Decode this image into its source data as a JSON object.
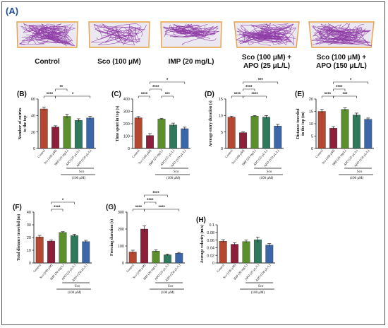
{
  "figure": {
    "panel_label": "(A)",
    "colors": {
      "track_path": "#8e3aa6",
      "tank_outline": "#e8a040",
      "tank_fill": "#ece8f2"
    },
    "groups": [
      {
        "label": "Control"
      },
      {
        "label": "Sco (100 μM)"
      },
      {
        "label": "IMP (20 mg/L)"
      },
      {
        "label": "Sco (100 μM) +",
        "label2": "APO (25 μL/L)"
      },
      {
        "label": "Sco (100 μM) +",
        "label2": "APO (150 μL/L)"
      }
    ]
  },
  "chart_data": [
    {
      "type": "bar",
      "panel": "(B)",
      "ylabel": "Number of entries\nto the top",
      "ylim": [
        0,
        60
      ],
      "yticks": [
        0,
        20,
        40,
        60
      ],
      "categories": [
        "Control",
        "Sco (100 μM)",
        "IMP (20 mg/L)",
        "APO (25 μL/L)",
        "APO (150 μL/L)"
      ],
      "values": [
        48,
        26,
        39,
        34,
        37
      ],
      "errors": [
        2,
        1.5,
        2.5,
        2,
        2
      ],
      "colors": [
        "#b5462f",
        "#8e1f3a",
        "#5b8f2e",
        "#2f7a5c",
        "#3b66a8"
      ],
      "group_label": "Sco",
      "group_sub": "(100 μM)",
      "sig": [
        {
          "from": 0,
          "to": 1,
          "level": 1,
          "label": "****"
        },
        {
          "from": 1,
          "to": 2,
          "level": 2,
          "label": "**"
        },
        {
          "from": 1,
          "to": 4,
          "level": 1,
          "label": "*"
        }
      ]
    },
    {
      "type": "bar",
      "panel": "(C)",
      "ylabel": "Time spent in top (s)",
      "ylim": [
        0,
        400
      ],
      "yticks": [
        0,
        100,
        200,
        300,
        400
      ],
      "categories": [
        "Control",
        "Sco (100 μM)",
        "IMP (20 mg/L)",
        "APO (25 μL/L)",
        "APO (150 μL/L)"
      ],
      "values": [
        248,
        105,
        238,
        190,
        160
      ],
      "errors": [
        10,
        15,
        6,
        15,
        12
      ],
      "colors": [
        "#b5462f",
        "#8e1f3a",
        "#5b8f2e",
        "#2f7a5c",
        "#3b66a8"
      ],
      "group_label": "Sco",
      "group_sub": "(100 μM)",
      "sig": [
        {
          "from": 0,
          "to": 1,
          "level": 1,
          "label": "****"
        },
        {
          "from": 1,
          "to": 2,
          "level": 2,
          "label": "****"
        },
        {
          "from": 2,
          "to": 3,
          "level": 1,
          "label": "***"
        },
        {
          "from": 1,
          "to": 4,
          "level": 3,
          "label": "*"
        }
      ]
    },
    {
      "type": "bar",
      "panel": "(D)",
      "ylabel": "Average entry duration (s)",
      "ylim": [
        0,
        15
      ],
      "yticks": [
        0,
        5,
        10,
        15
      ],
      "categories": [
        "Control",
        "Sco (100 μM)",
        "IMP (20 mg/L)",
        "APO (25 μL/L)",
        "APO (150 μL/L)"
      ],
      "values": [
        9.5,
        4.8,
        9.8,
        9.5,
        6.8
      ],
      "errors": [
        0.3,
        0.2,
        0.2,
        0.5,
        0.5
      ],
      "colors": [
        "#b5462f",
        "#8e1f3a",
        "#5b8f2e",
        "#2f7a5c",
        "#3b66a8"
      ],
      "group_label": "Sco",
      "group_sub": "(100 μM)",
      "sig": [
        {
          "from": 0,
          "to": 1,
          "level": 1,
          "label": "****"
        },
        {
          "from": 1,
          "to": 2,
          "level": 2,
          "label": "****"
        },
        {
          "from": 1,
          "to": 3,
          "level": 1,
          "label": "****"
        },
        {
          "from": 1,
          "to": 4,
          "level": 3,
          "label": "***"
        }
      ]
    },
    {
      "type": "bar",
      "panel": "(E)",
      "ylabel": "Distance traveled\nin the top (m)",
      "ylim": [
        0,
        20
      ],
      "yticks": [
        0,
        5,
        10,
        15,
        20
      ],
      "categories": [
        "Control",
        "Sco (100 μM)",
        "IMP (20 mg/L)",
        "APO (25 μL/L)",
        "APO (150 μL/L)"
      ],
      "values": [
        15,
        8.2,
        15.8,
        13.5,
        11.8
      ],
      "errors": [
        0.8,
        0.6,
        0.6,
        0.8,
        0.5
      ],
      "colors": [
        "#b5462f",
        "#8e1f3a",
        "#5b8f2e",
        "#2f7a5c",
        "#3b66a8"
      ],
      "group_label": "Sco",
      "group_sub": "(100 μM)",
      "sig": [
        {
          "from": 0,
          "to": 1,
          "level": 1,
          "label": "****"
        },
        {
          "from": 1,
          "to": 2,
          "level": 2,
          "label": "****"
        },
        {
          "from": 1,
          "to": 3,
          "level": 1,
          "label": "***"
        },
        {
          "from": 1,
          "to": 4,
          "level": 3,
          "label": "*"
        }
      ]
    },
    {
      "type": "bar",
      "panel": "(F)",
      "ylabel": "Total distance traveled (m)",
      "ylim": [
        0,
        40
      ],
      "yticks": [
        0,
        10,
        20,
        30,
        40
      ],
      "categories": [
        "Control",
        "Sco (100 μM)",
        "IMP (20 mg/L)",
        "APO (25 μL/L)",
        "APO (150 μL/L)"
      ],
      "values": [
        20.5,
        17.2,
        24,
        21.5,
        16.8
      ],
      "errors": [
        1.2,
        0.8,
        0.6,
        1.0,
        1.0
      ],
      "colors": [
        "#b5462f",
        "#8e1f3a",
        "#5b8f2e",
        "#2f7a5c",
        "#3b66a8"
      ],
      "group_label": "Sco",
      "group_sub": "(100 μM)",
      "sig": [
        {
          "from": 1,
          "to": 2,
          "level": 1,
          "label": "****"
        },
        {
          "from": 1,
          "to": 3,
          "level": 2,
          "label": "*"
        }
      ]
    },
    {
      "type": "bar",
      "panel": "(G)",
      "ylabel": "Freezing duration (s)",
      "ylim": [
        0,
        300
      ],
      "yticks": [
        0,
        100,
        200,
        300
      ],
      "categories": [
        "Control",
        "Sco (100 μM)",
        "IMP (20 mg/L)",
        "APO (25 μL/L)",
        "APO (150 μL/L)"
      ],
      "values": [
        65,
        200,
        70,
        48,
        57
      ],
      "errors": [
        10,
        18,
        8,
        4,
        5
      ],
      "colors": [
        "#b5462f",
        "#8e1f3a",
        "#5b8f2e",
        "#2f7a5c",
        "#3b66a8"
      ],
      "group_label": "Sco",
      "group_sub": "(100 μM)",
      "sig": [
        {
          "from": 0,
          "to": 1,
          "level": 1,
          "label": "****"
        },
        {
          "from": 1,
          "to": 2,
          "level": 2,
          "label": "****"
        },
        {
          "from": 1,
          "to": 3,
          "level": 3,
          "label": "****"
        },
        {
          "from": 1,
          "to": 4,
          "level": 1,
          "label": "****"
        }
      ]
    },
    {
      "type": "bar",
      "panel": "(H)",
      "ylabel": "Average velocity (m/s)",
      "ylim": [
        0,
        0.1
      ],
      "yticks": [
        0,
        0.02,
        0.04,
        0.06,
        0.08,
        0.1
      ],
      "categories": [
        "Control",
        "Sco (100 μM)",
        "IMP (20 mg/L)",
        "APO (25 μL/L)",
        "APO (150 μL/L)"
      ],
      "values": [
        0.057,
        0.049,
        0.056,
        0.061,
        0.047
      ],
      "errors": [
        0.004,
        0.004,
        0.004,
        0.007,
        0.004
      ],
      "colors": [
        "#b5462f",
        "#8e1f3a",
        "#5b8f2e",
        "#2f7a5c",
        "#3b66a8"
      ],
      "group_label": "Sco",
      "group_sub": "(100 μM)",
      "sig": []
    }
  ]
}
